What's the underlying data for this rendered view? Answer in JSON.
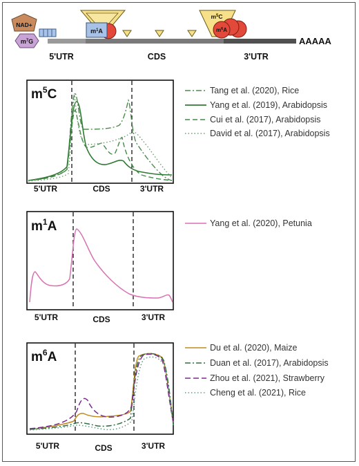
{
  "gene_model": {
    "cap_label": "NAD+",
    "m7g": {
      "base": "m",
      "sup": "7",
      "end": "G"
    },
    "m1a": {
      "base": "m",
      "sup": "1",
      "end": "A"
    },
    "m5c": {
      "base": "m",
      "sup": "5",
      "end": "C"
    },
    "m6a": {
      "base": "m",
      "sup": "6",
      "end": "A"
    },
    "polya": "AAAAA",
    "regions": [
      "5'UTR",
      "CDS",
      "3'UTR"
    ],
    "colors": {
      "cap": "#c98a5e",
      "m7g": "#c9a3d6",
      "box": "#a9c4e8",
      "triangle": "#f6e08a",
      "circle": "#e2493a",
      "m1a_box": "#a8c1e6",
      "rna_light": "#9a9a9a",
      "rna_dark": "#505050"
    }
  },
  "panels": [
    {
      "id": "m5c",
      "title": {
        "base": "m",
        "sup": "5",
        "end": "C"
      },
      "regions": [
        "5'UTR",
        "CDS",
        "3'UTR"
      ],
      "legend": [
        {
          "label": "Tang et al. (2020), Rice",
          "color": "#4f8a4f",
          "dash": "8 3 2 3"
        },
        {
          "label": "Yang et al. (2019), Arabidopsis",
          "color": "#2e7a32",
          "dash": ""
        },
        {
          "label": "Cui et al. (2017), Arabidopsis",
          "color": "#3f8a44",
          "dash": "7 4"
        },
        {
          "label": "David et al. (2017), Arabidopsis",
          "color": "#6d9a6d",
          "dash": "1.5 3"
        }
      ]
    },
    {
      "id": "m1a",
      "title": {
        "base": "m",
        "sup": "1",
        "end": "A"
      },
      "regions": [
        "5'UTR",
        "CDS",
        "3'UTR"
      ],
      "legend": [
        {
          "label": "Yang et al. (2020), Petunia",
          "color": "#d771b2",
          "dash": ""
        }
      ]
    },
    {
      "id": "m6a",
      "title": {
        "base": "m",
        "sup": "6",
        "end": "A"
      },
      "regions": [
        "5'UTR",
        "CDS",
        "3'UTR"
      ],
      "legend": [
        {
          "label": "Du et al. (2020), Maize",
          "color": "#c08a1e",
          "dash": ""
        },
        {
          "label": "Duan et al. (2017), Arabidopsis",
          "color": "#2c6e3f",
          "dash": "8 3 2 3"
        },
        {
          "label": "Zhou et al. (2021), Strawberry",
          "color": "#7a2a8c",
          "dash": "8 4"
        },
        {
          "label": "Cheng et al. (2021), Rice",
          "color": "#5a9c86",
          "dash": "1.5 3"
        }
      ]
    }
  ]
}
